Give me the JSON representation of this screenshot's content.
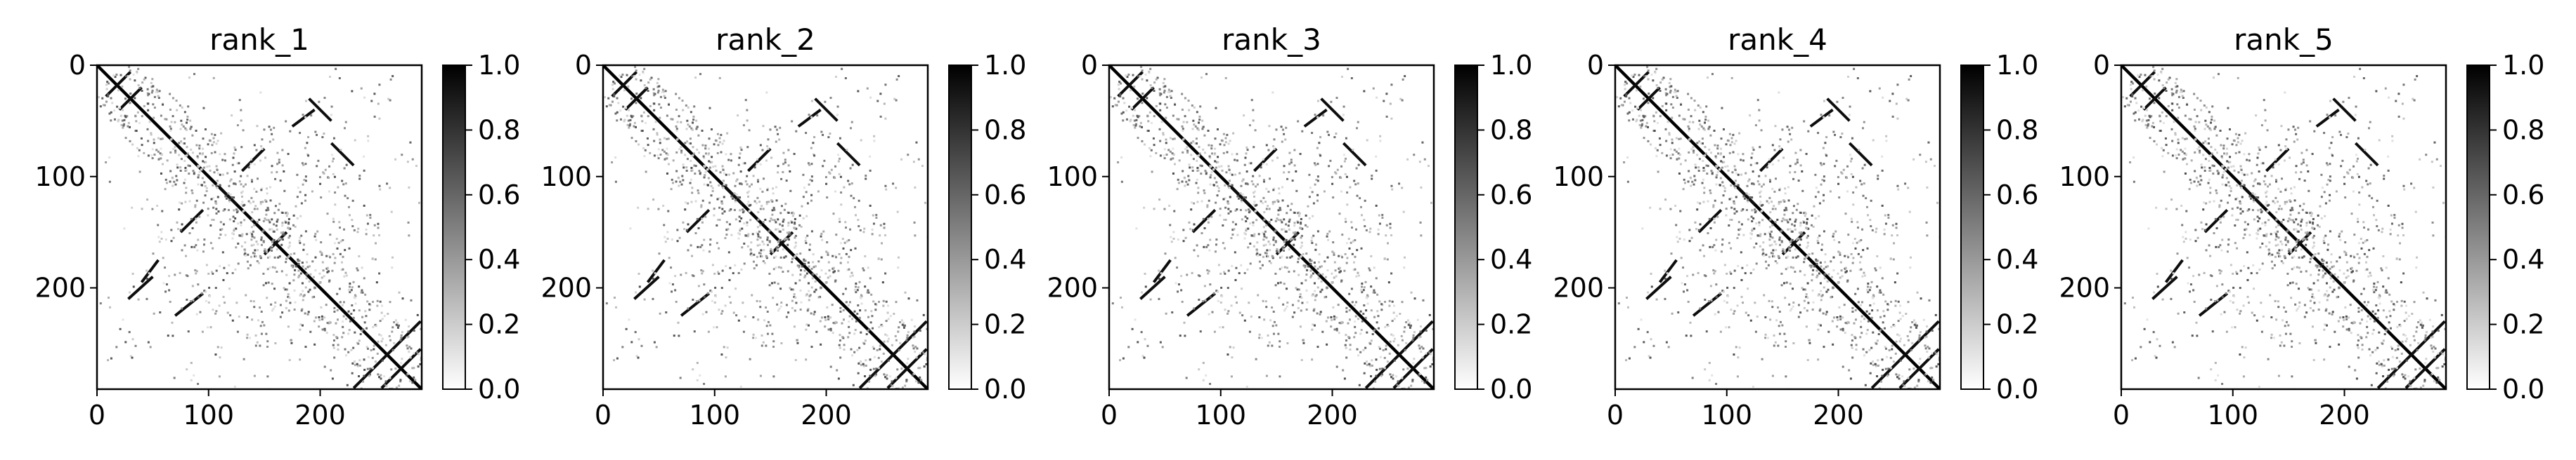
{
  "chart_data": [
    {
      "type": "heatmap",
      "title": "rank_1",
      "xlim": [
        0,
        291
      ],
      "ylim": [
        291,
        0
      ],
      "x_ticks": [
        0,
        100,
        200
      ],
      "y_ticks": [
        0,
        100,
        200
      ],
      "colorbar": {
        "vmin": 0.0,
        "vmax": 1.0,
        "ticks": [
          "0.0",
          "0.2",
          "0.4",
          "0.6",
          "0.8",
          "1.0"
        ],
        "cmap": "Greys"
      },
      "matrix_size": 291,
      "description_of_structure": "contact map: strong main diagonal plus off-diagonal segments"
    },
    {
      "type": "heatmap",
      "title": "rank_2",
      "xlim": [
        0,
        291
      ],
      "ylim": [
        291,
        0
      ],
      "x_ticks": [
        0,
        100,
        200
      ],
      "y_ticks": [
        0,
        100,
        200
      ],
      "colorbar": {
        "vmin": 0.0,
        "vmax": 1.0,
        "ticks": [
          "0.0",
          "0.2",
          "0.4",
          "0.6",
          "0.8",
          "1.0"
        ],
        "cmap": "Greys"
      },
      "matrix_size": 291
    },
    {
      "type": "heatmap",
      "title": "rank_3",
      "xlim": [
        0,
        291
      ],
      "ylim": [
        291,
        0
      ],
      "x_ticks": [
        0,
        100,
        200
      ],
      "y_ticks": [
        0,
        100,
        200
      ],
      "colorbar": {
        "vmin": 0.0,
        "vmax": 1.0,
        "ticks": [
          "0.0",
          "0.2",
          "0.4",
          "0.6",
          "0.8",
          "1.0"
        ],
        "cmap": "Greys"
      },
      "matrix_size": 291
    },
    {
      "type": "heatmap",
      "title": "rank_4",
      "xlim": [
        0,
        291
      ],
      "ylim": [
        291,
        0
      ],
      "x_ticks": [
        0,
        100,
        200
      ],
      "y_ticks": [
        0,
        100,
        200
      ],
      "colorbar": {
        "vmin": 0.0,
        "vmax": 1.0,
        "ticks": [
          "0.0",
          "0.2",
          "0.4",
          "0.6",
          "0.8",
          "1.0"
        ],
        "cmap": "Greys"
      },
      "matrix_size": 291
    },
    {
      "type": "heatmap",
      "title": "rank_5",
      "xlim": [
        0,
        291
      ],
      "ylim": [
        291,
        0
      ],
      "x_ticks": [
        0,
        100,
        200
      ],
      "y_ticks": [
        0,
        100,
        200
      ],
      "colorbar": {
        "vmin": 0.0,
        "vmax": 1.0,
        "ticks": [
          "0.0",
          "0.2",
          "0.4",
          "0.6",
          "0.8",
          "1.0"
        ],
        "cmap": "Greys"
      },
      "matrix_size": 291
    }
  ],
  "colors": {
    "background": "#ffffff",
    "ink": "#000000",
    "low": "#ffffff",
    "high": "#000000"
  }
}
